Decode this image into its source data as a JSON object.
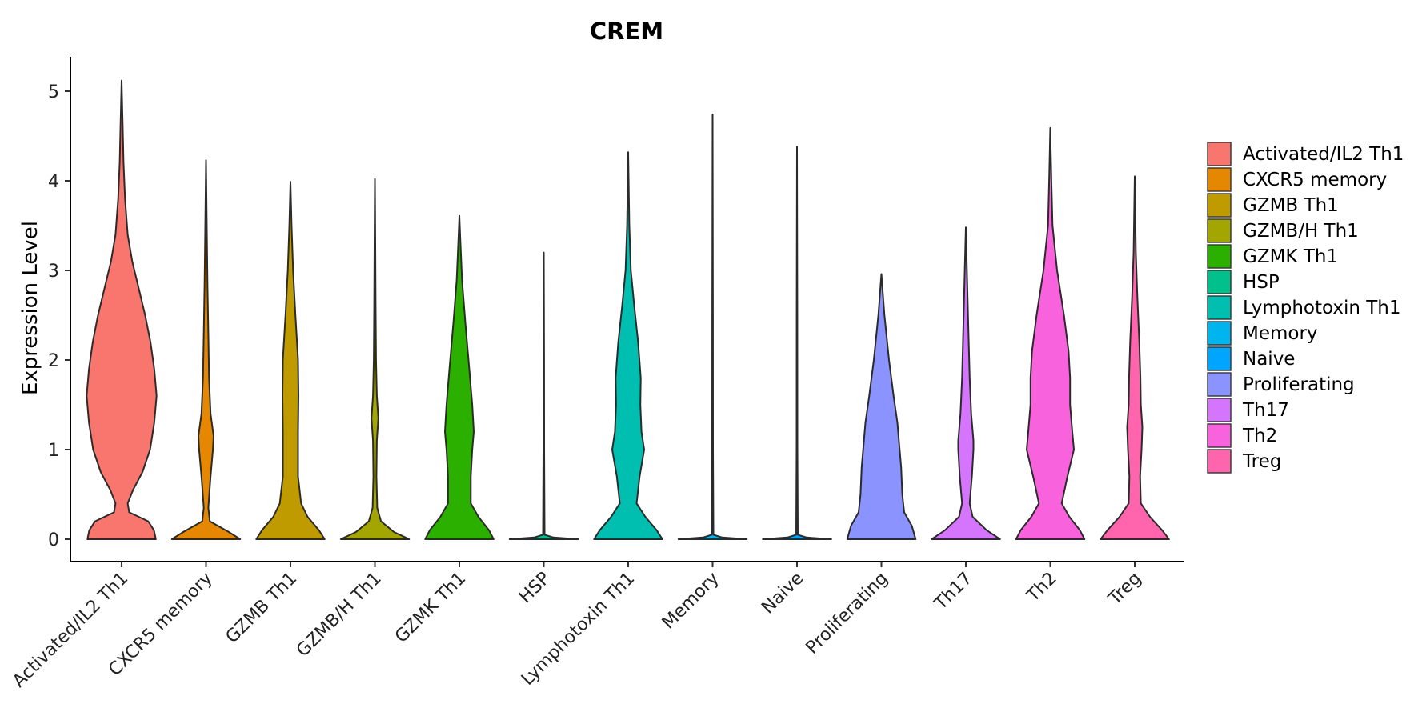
{
  "chart_data": {
    "type": "violin",
    "title": "CREM",
    "xlabel": "",
    "ylabel": "Expression Level",
    "ylim": [
      -0.25,
      5.4
    ],
    "yticks": [
      0,
      1,
      2,
      3,
      4,
      5
    ],
    "grid": false,
    "legend_position": "right",
    "categories": [
      "Activated/IL2 Th1",
      "CXCR5 memory",
      "GZMB Th1",
      "GZMB/H Th1",
      "GZMK Th1",
      "HSP",
      "Lymphotoxin Th1",
      "Memory",
      "Naive",
      "Proliferating",
      "Th17",
      "Th2",
      "Treg"
    ],
    "series": [
      {
        "name": "Activated/IL2 Th1",
        "color": "#F8766D",
        "max": 5.12,
        "density": [
          [
            0,
            0.9
          ],
          [
            0.1,
            0.85
          ],
          [
            0.2,
            0.7
          ],
          [
            0.3,
            0.2
          ],
          [
            0.4,
            0.16
          ],
          [
            0.55,
            0.3
          ],
          [
            0.75,
            0.55
          ],
          [
            1.0,
            0.75
          ],
          [
            1.3,
            0.86
          ],
          [
            1.6,
            0.92
          ],
          [
            1.9,
            0.86
          ],
          [
            2.2,
            0.76
          ],
          [
            2.5,
            0.62
          ],
          [
            2.8,
            0.45
          ],
          [
            3.1,
            0.28
          ],
          [
            3.4,
            0.16
          ],
          [
            3.8,
            0.09
          ],
          [
            4.2,
            0.05
          ],
          [
            4.6,
            0.03
          ],
          [
            5.12,
            0
          ]
        ]
      },
      {
        "name": "CXCR5 memory",
        "color": "#E58700",
        "max": 4.23,
        "density": [
          [
            0,
            0.9
          ],
          [
            0.08,
            0.6
          ],
          [
            0.2,
            0.1
          ],
          [
            0.35,
            0.06
          ],
          [
            0.7,
            0.12
          ],
          [
            1.0,
            0.18
          ],
          [
            1.15,
            0.2
          ],
          [
            1.4,
            0.12
          ],
          [
            1.8,
            0.08
          ],
          [
            2.3,
            0.06
          ],
          [
            2.8,
            0.04
          ],
          [
            3.3,
            0.025
          ],
          [
            4.23,
            0
          ]
        ]
      },
      {
        "name": "GZMB Th1",
        "color": "#C09B00",
        "max": 3.99,
        "density": [
          [
            0,
            0.9
          ],
          [
            0.1,
            0.75
          ],
          [
            0.25,
            0.45
          ],
          [
            0.4,
            0.28
          ],
          [
            0.7,
            0.2
          ],
          [
            1.0,
            0.2
          ],
          [
            1.2,
            0.2
          ],
          [
            1.6,
            0.21
          ],
          [
            2.0,
            0.2
          ],
          [
            2.5,
            0.13
          ],
          [
            3.0,
            0.07
          ],
          [
            3.5,
            0.03
          ],
          [
            3.99,
            0
          ]
        ]
      },
      {
        "name": "GZMB/H Th1",
        "color": "#A3A500",
        "max": 4.02,
        "density": [
          [
            0,
            0.9
          ],
          [
            0.08,
            0.5
          ],
          [
            0.2,
            0.16
          ],
          [
            0.35,
            0.06
          ],
          [
            0.7,
            0.04
          ],
          [
            1.1,
            0.05
          ],
          [
            1.35,
            0.09
          ],
          [
            1.6,
            0.05
          ],
          [
            2.0,
            0.03
          ],
          [
            2.6,
            0.02
          ],
          [
            3.3,
            0.01
          ],
          [
            4.02,
            0
          ]
        ]
      },
      {
        "name": "GZMK Th1",
        "color": "#2CB000",
        "max": 3.61,
        "density": [
          [
            0,
            0.9
          ],
          [
            0.1,
            0.78
          ],
          [
            0.25,
            0.5
          ],
          [
            0.4,
            0.3
          ],
          [
            0.7,
            0.3
          ],
          [
            1.0,
            0.34
          ],
          [
            1.2,
            0.38
          ],
          [
            1.5,
            0.34
          ],
          [
            1.9,
            0.26
          ],
          [
            2.4,
            0.16
          ],
          [
            2.9,
            0.07
          ],
          [
            3.3,
            0.03
          ],
          [
            3.61,
            0
          ]
        ]
      },
      {
        "name": "HSP",
        "color": "#00C08B",
        "max": 3.2,
        "density": [
          [
            0,
            0.9
          ],
          [
            0.02,
            0.25
          ],
          [
            0.05,
            0.02
          ],
          [
            1.0,
            0.01
          ],
          [
            2.0,
            0.008
          ],
          [
            3.2,
            0
          ]
        ]
      },
      {
        "name": "Lymphotoxin Th1",
        "color": "#00BFB0",
        "max": 4.32,
        "density": [
          [
            0,
            0.9
          ],
          [
            0.1,
            0.75
          ],
          [
            0.25,
            0.45
          ],
          [
            0.4,
            0.22
          ],
          [
            0.7,
            0.3
          ],
          [
            1.0,
            0.42
          ],
          [
            1.2,
            0.35
          ],
          [
            1.5,
            0.32
          ],
          [
            1.8,
            0.33
          ],
          [
            2.2,
            0.26
          ],
          [
            2.6,
            0.16
          ],
          [
            3.0,
            0.07
          ],
          [
            3.5,
            0.03
          ],
          [
            4.32,
            0
          ]
        ]
      },
      {
        "name": "Memory",
        "color": "#00B4EF",
        "max": 4.74,
        "density": [
          [
            0,
            0.9
          ],
          [
            0.02,
            0.25
          ],
          [
            0.05,
            0.02
          ],
          [
            1.0,
            0.01
          ],
          [
            2.5,
            0.008
          ],
          [
            4.74,
            0
          ]
        ]
      },
      {
        "name": "Naive",
        "color": "#00A5FF",
        "max": 4.38,
        "density": [
          [
            0,
            0.9
          ],
          [
            0.02,
            0.25
          ],
          [
            0.05,
            0.02
          ],
          [
            1.0,
            0.01
          ],
          [
            2.5,
            0.008
          ],
          [
            4.38,
            0
          ]
        ]
      },
      {
        "name": "Proliferating",
        "color": "#8B93FF",
        "max": 2.96,
        "density": [
          [
            0,
            0.9
          ],
          [
            0.15,
            0.8
          ],
          [
            0.3,
            0.6
          ],
          [
            0.5,
            0.55
          ],
          [
            0.8,
            0.52
          ],
          [
            1.0,
            0.48
          ],
          [
            1.3,
            0.42
          ],
          [
            1.6,
            0.32
          ],
          [
            2.0,
            0.2
          ],
          [
            2.5,
            0.08
          ],
          [
            2.96,
            0
          ]
        ]
      },
      {
        "name": "Th17",
        "color": "#D575FE",
        "max": 3.48,
        "density": [
          [
            0,
            0.9
          ],
          [
            0.1,
            0.55
          ],
          [
            0.25,
            0.18
          ],
          [
            0.4,
            0.1
          ],
          [
            0.7,
            0.16
          ],
          [
            1.0,
            0.2
          ],
          [
            1.1,
            0.2
          ],
          [
            1.4,
            0.14
          ],
          [
            1.8,
            0.1
          ],
          [
            2.3,
            0.07
          ],
          [
            2.8,
            0.04
          ],
          [
            3.48,
            0
          ]
        ]
      },
      {
        "name": "Th2",
        "color": "#F962DD",
        "max": 4.59,
        "density": [
          [
            0,
            0.9
          ],
          [
            0.1,
            0.78
          ],
          [
            0.25,
            0.5
          ],
          [
            0.4,
            0.3
          ],
          [
            0.7,
            0.45
          ],
          [
            1.0,
            0.62
          ],
          [
            1.2,
            0.58
          ],
          [
            1.5,
            0.52
          ],
          [
            1.8,
            0.52
          ],
          [
            2.1,
            0.48
          ],
          [
            2.5,
            0.36
          ],
          [
            3.0,
            0.18
          ],
          [
            3.5,
            0.06
          ],
          [
            4.0,
            0.03
          ],
          [
            4.59,
            0
          ]
        ]
      },
      {
        "name": "Treg",
        "color": "#FF65AC",
        "max": 4.05,
        "density": [
          [
            0,
            0.9
          ],
          [
            0.1,
            0.72
          ],
          [
            0.25,
            0.4
          ],
          [
            0.4,
            0.16
          ],
          [
            0.7,
            0.14
          ],
          [
            1.0,
            0.18
          ],
          [
            1.25,
            0.2
          ],
          [
            1.5,
            0.16
          ],
          [
            1.8,
            0.15
          ],
          [
            2.2,
            0.12
          ],
          [
            2.7,
            0.07
          ],
          [
            3.2,
            0.03
          ],
          [
            4.05,
            0
          ]
        ]
      }
    ]
  }
}
